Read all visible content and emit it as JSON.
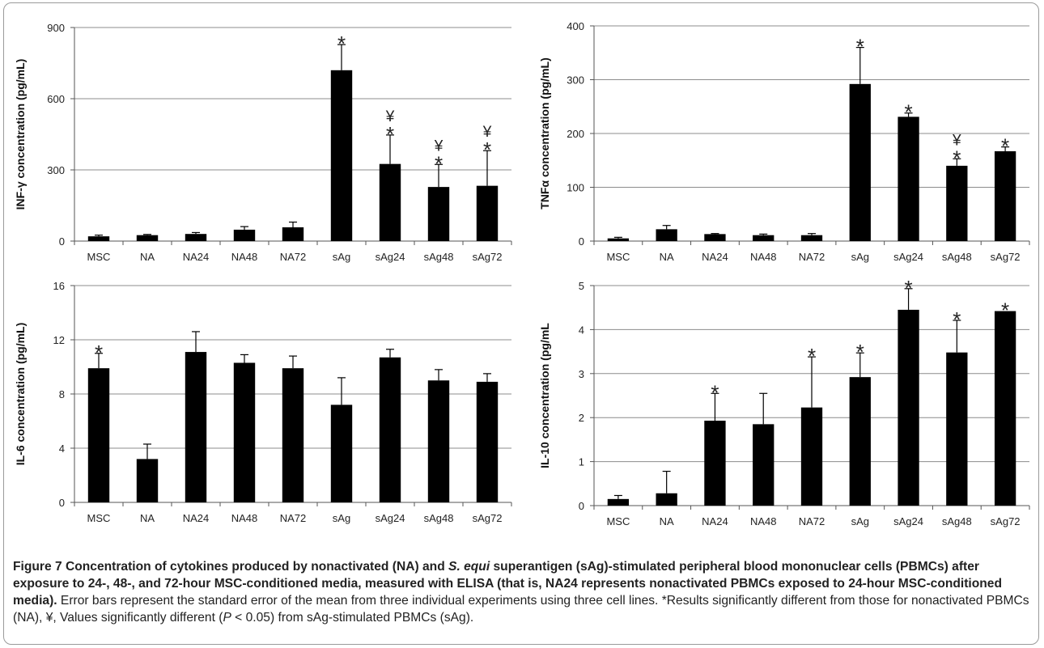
{
  "chart_data": [
    {
      "type": "bar",
      "categories": [
        "MSC",
        "NA",
        "NA24",
        "NA48",
        "NA72",
        "sAg",
        "sAg24",
        "sAg48",
        "sAg72"
      ],
      "values": [
        20,
        25,
        30,
        48,
        58,
        720,
        325,
        228,
        233
      ],
      "errors": [
        5,
        3,
        6,
        13,
        22,
        108,
        122,
        95,
        148
      ],
      "markers": [
        [],
        [],
        [],
        [],
        [],
        [
          "*"
        ],
        [
          "*",
          "¥"
        ],
        [
          "*",
          "¥"
        ],
        [
          "*",
          "¥"
        ]
      ],
      "ylabel": "INF-γ  concentration (pg/mL)",
      "ylim": [
        0,
        900
      ],
      "yticks": [
        0,
        300,
        600,
        900
      ],
      "grid": true
    },
    {
      "type": "bar",
      "categories": [
        "MSC",
        "NA",
        "NA24",
        "NA48",
        "NA72",
        "sAg",
        "sAg24",
        "sAg48",
        "sAg72"
      ],
      "values": [
        5,
        22,
        13,
        11,
        11,
        292,
        231,
        140,
        167
      ],
      "errors": [
        2,
        7,
        1,
        2,
        3,
        68,
        7,
        13,
        8
      ],
      "markers": [
        [],
        [],
        [],
        [],
        [],
        [
          "*"
        ],
        [
          "*"
        ],
        [
          "*",
          "¥"
        ],
        [
          "*"
        ]
      ],
      "ylabel": "TNFα  concentration (pg/mL)",
      "ylim": [
        0,
        400
      ],
      "yticks": [
        0,
        100,
        200,
        300,
        400
      ],
      "grid": true
    },
    {
      "type": "bar",
      "categories": [
        "MSC",
        "NA",
        "NA24",
        "NA48",
        "NA72",
        "sAg",
        "sAg24",
        "sAg48",
        "sAg72"
      ],
      "values": [
        9.9,
        3.2,
        11.1,
        10.3,
        9.9,
        7.2,
        10.7,
        9.0,
        8.9
      ],
      "errors": [
        1.1,
        1.1,
        1.5,
        0.6,
        0.9,
        2.0,
        0.6,
        0.8,
        0.6
      ],
      "markers": [
        [
          "*"
        ],
        [],
        [],
        [],
        [],
        [],
        [],
        [],
        []
      ],
      "ylabel": "IL-6 concentration (pg/mL)",
      "ylim": [
        0,
        16
      ],
      "yticks": [
        0,
        4,
        8,
        12,
        16
      ],
      "grid": true
    },
    {
      "type": "bar",
      "categories": [
        "MSC",
        "NA",
        "NA24",
        "NA48",
        "NA72",
        "sAg",
        "sAg24",
        "sAg48",
        "sAg72"
      ],
      "values": [
        0.15,
        0.28,
        1.93,
        1.85,
        2.23,
        2.92,
        4.45,
        3.48,
        4.42
      ],
      "errors": [
        0.08,
        0.5,
        0.62,
        0.7,
        1.15,
        0.55,
        0.48,
        0.73,
        0
      ],
      "markers": [
        [],
        [],
        [
          "*"
        ],
        [],
        [
          "*"
        ],
        [
          "*"
        ],
        [
          "*"
        ],
        [
          "*"
        ],
        [
          "*"
        ]
      ],
      "ylabel": "IL-10 concentration (pg/mL",
      "ylim": [
        0,
        5
      ],
      "yticks": [
        0,
        1,
        2,
        3,
        4,
        5
      ],
      "grid": true
    }
  ],
  "caption": {
    "bold": "Figure 7 Concentration of cytokines produced by nonactivated (NA) and S. equi superantigen (sAg)-stimulated peripheral blood mononuclear cells (PBMCs) after exposure to 24-, 48-, and 72-hour MSC-conditioned media, measured with ELISA (that is, NA24 represents nonactivated PBMCs exposed to 24-hour MSC-conditioned media).",
    "bold_pre_italic": "Figure 7 Concentration of cytokines produced by nonactivated (NA) and ",
    "bold_italic": "S. equi",
    "bold_post_italic": " superantigen (sAg)-stimulated peripheral blood mononuclear cells (PBMCs) after exposure to 24-, 48-, and 72-hour MSC-conditioned media, measured with ELISA (that is, NA24 represents nonactivated PBMCs exposed to 24-hour MSC-conditioned media).",
    "normal_pre_italic": " Error bars represent the standard error of the mean from three individual experiments using three cell lines. *Results significantly different from those for nonactivated PBMCs (NA), ¥, Values significantly different (",
    "normal_italic": "P",
    "normal_post_italic": " < 0.05) from sAg-stimulated PBMCs (sAg)."
  }
}
